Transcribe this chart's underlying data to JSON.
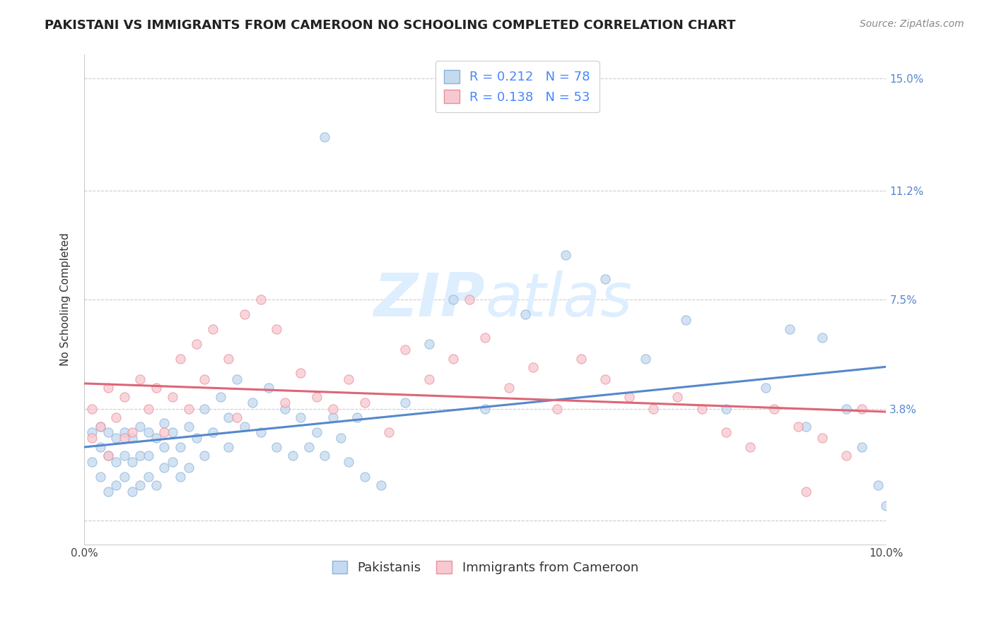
{
  "title": "PAKISTANI VS IMMIGRANTS FROM CAMEROON NO SCHOOLING COMPLETED CORRELATION CHART",
  "source": "Source: ZipAtlas.com",
  "ylabel": "No Schooling Completed",
  "xlim": [
    0.0,
    0.1
  ],
  "ylim": [
    -0.008,
    0.158
  ],
  "yticks": [
    0.0,
    0.038,
    0.075,
    0.112,
    0.15
  ],
  "ytick_labels": [
    "",
    "3.8%",
    "7.5%",
    "11.2%",
    "15.0%"
  ],
  "grid_color": "#cccccc",
  "background_color": "#ffffff",
  "pakistani_color": "#c5d9f0",
  "pakistani_edge_color": "#8ab4d8",
  "cameroon_color": "#f8c8d0",
  "cameroon_edge_color": "#e8909a",
  "pakistani_R": 0.212,
  "pakistani_N": 78,
  "cameroon_R": 0.138,
  "cameroon_N": 53,
  "legend_text_color": "#4488ff",
  "pakistani_line_color": "#5588cc",
  "cameroon_line_color": "#dd6677",
  "watermark_color": "#ddeeff",
  "title_fontsize": 13,
  "source_fontsize": 10,
  "axis_label_fontsize": 11,
  "tick_fontsize": 11,
  "legend_fontsize": 13,
  "marker_size": 90,
  "marker_alpha": 0.75,
  "pak_seed": 7,
  "cam_seed": 15,
  "pak_x": [
    0.001,
    0.001,
    0.002,
    0.002,
    0.002,
    0.003,
    0.003,
    0.003,
    0.004,
    0.004,
    0.004,
    0.005,
    0.005,
    0.005,
    0.006,
    0.006,
    0.006,
    0.007,
    0.007,
    0.007,
    0.008,
    0.008,
    0.008,
    0.009,
    0.009,
    0.01,
    0.01,
    0.01,
    0.011,
    0.011,
    0.012,
    0.012,
    0.013,
    0.013,
    0.014,
    0.015,
    0.015,
    0.016,
    0.017,
    0.018,
    0.018,
    0.019,
    0.02,
    0.021,
    0.022,
    0.023,
    0.024,
    0.025,
    0.026,
    0.027,
    0.028,
    0.029,
    0.03,
    0.031,
    0.032,
    0.033,
    0.034,
    0.035,
    0.037,
    0.04,
    0.043,
    0.046,
    0.05,
    0.055,
    0.06,
    0.065,
    0.07,
    0.075,
    0.08,
    0.085,
    0.09,
    0.095,
    0.097,
    0.099,
    0.1,
    0.092,
    0.088,
    0.03
  ],
  "pak_y": [
    0.02,
    0.03,
    0.015,
    0.025,
    0.032,
    0.01,
    0.022,
    0.03,
    0.012,
    0.02,
    0.028,
    0.015,
    0.022,
    0.03,
    0.01,
    0.02,
    0.028,
    0.012,
    0.022,
    0.032,
    0.015,
    0.022,
    0.03,
    0.012,
    0.028,
    0.018,
    0.025,
    0.033,
    0.02,
    0.03,
    0.015,
    0.025,
    0.018,
    0.032,
    0.028,
    0.022,
    0.038,
    0.03,
    0.042,
    0.025,
    0.035,
    0.048,
    0.032,
    0.04,
    0.03,
    0.045,
    0.025,
    0.038,
    0.022,
    0.035,
    0.025,
    0.03,
    0.022,
    0.035,
    0.028,
    0.02,
    0.035,
    0.015,
    0.012,
    0.04,
    0.06,
    0.075,
    0.038,
    0.07,
    0.09,
    0.082,
    0.055,
    0.068,
    0.038,
    0.045,
    0.032,
    0.038,
    0.025,
    0.012,
    0.005,
    0.062,
    0.065,
    0.13
  ],
  "cam_x": [
    0.001,
    0.001,
    0.002,
    0.003,
    0.003,
    0.004,
    0.005,
    0.005,
    0.006,
    0.007,
    0.008,
    0.009,
    0.01,
    0.011,
    0.012,
    0.013,
    0.014,
    0.015,
    0.016,
    0.018,
    0.019,
    0.02,
    0.022,
    0.024,
    0.025,
    0.027,
    0.029,
    0.031,
    0.033,
    0.035,
    0.038,
    0.04,
    0.043,
    0.046,
    0.048,
    0.05,
    0.053,
    0.056,
    0.059,
    0.062,
    0.065,
    0.068,
    0.071,
    0.074,
    0.077,
    0.08,
    0.083,
    0.086,
    0.089,
    0.092,
    0.095,
    0.097,
    0.09
  ],
  "cam_y": [
    0.028,
    0.038,
    0.032,
    0.045,
    0.022,
    0.035,
    0.028,
    0.042,
    0.03,
    0.048,
    0.038,
    0.045,
    0.03,
    0.042,
    0.055,
    0.038,
    0.06,
    0.048,
    0.065,
    0.055,
    0.035,
    0.07,
    0.075,
    0.065,
    0.04,
    0.05,
    0.042,
    0.038,
    0.048,
    0.04,
    0.03,
    0.058,
    0.048,
    0.055,
    0.075,
    0.062,
    0.045,
    0.052,
    0.038,
    0.055,
    0.048,
    0.042,
    0.038,
    0.042,
    0.038,
    0.03,
    0.025,
    0.038,
    0.032,
    0.028,
    0.022,
    0.038,
    0.01
  ]
}
